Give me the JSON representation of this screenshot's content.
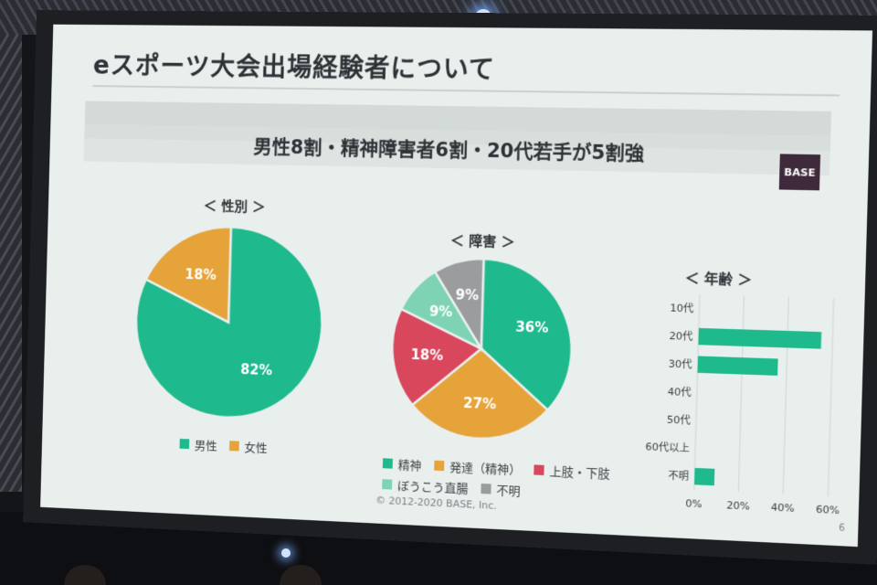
{
  "slide": {
    "title": "eスポーツ大会出場経験者について",
    "subtitle": "男性8割・精神障害者6割・20代若手が5割強",
    "logo_text": "BASE",
    "copyright": "© 2012-2020 BASE, Inc.",
    "page_number": "6"
  },
  "colors": {
    "green": "#1fb98e",
    "orange": "#e5a33a",
    "red": "#d9475d",
    "light_green": "#7fd3b5",
    "gray": "#9a9c9e",
    "screen_bg": "#e9efed"
  },
  "chart_data": [
    {
      "type": "pie",
      "title": "＜ 性別 ＞",
      "slices": [
        {
          "label": "男性",
          "value": 82,
          "display": "82%",
          "color": "#1fb98e"
        },
        {
          "label": "女性",
          "value": 18,
          "display": "18%",
          "color": "#e5a33a"
        }
      ],
      "legend_placement": "bottom"
    },
    {
      "type": "pie",
      "title": "＜ 障害 ＞",
      "slices": [
        {
          "label": "精神",
          "value": 36,
          "display": "36%",
          "color": "#1fb98e"
        },
        {
          "label": "発達（精神）",
          "value": 27,
          "display": "27%",
          "color": "#e5a33a"
        },
        {
          "label": "上肢・下肢",
          "value": 18,
          "display": "18%",
          "color": "#d9475d"
        },
        {
          "label": "ぼうこう直腸",
          "value": 9,
          "display": "9%",
          "color": "#7fd3b5"
        },
        {
          "label": "不明",
          "value": 9,
          "display": "9%",
          "color": "#9a9c9e"
        }
      ],
      "legend_placement": "bottom"
    },
    {
      "type": "bar",
      "orientation": "horizontal",
      "title": "＜ 年齢 ＞",
      "categories": [
        "10代",
        "20代",
        "30代",
        "40代",
        "50代",
        "60代以上",
        "不明"
      ],
      "values": [
        0,
        55,
        36,
        0,
        0,
        0,
        9
      ],
      "xlim": [
        0,
        60
      ],
      "xticks": [
        "0%",
        "20%",
        "40%",
        "60%"
      ],
      "grid": true,
      "color": "#1fb98e"
    }
  ]
}
